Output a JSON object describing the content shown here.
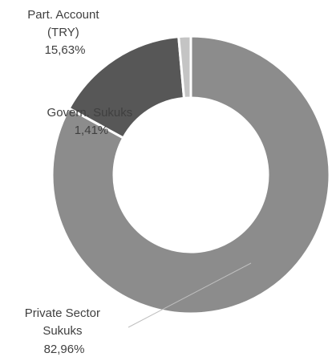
{
  "chart_data": {
    "type": "pie",
    "donut": true,
    "title": "",
    "unit": "%",
    "slices": [
      {
        "name_lines": [
          "Private Sector",
          "Sukuks"
        ],
        "value": 82.96,
        "value_label": "82,96%",
        "color": "#8c8c8c"
      },
      {
        "name_lines": [
          "Part. Account",
          "(TRY)"
        ],
        "value": 15.63,
        "value_label": "15,63%",
        "color": "#575757"
      },
      {
        "name_lines": [
          "Govern. Sukuks"
        ],
        "value": 1.41,
        "value_label": "1,41%",
        "color": "#c4c4c4"
      }
    ],
    "slice_border_color": "#ffffff",
    "leader_line_color": "#bfbfbf"
  }
}
